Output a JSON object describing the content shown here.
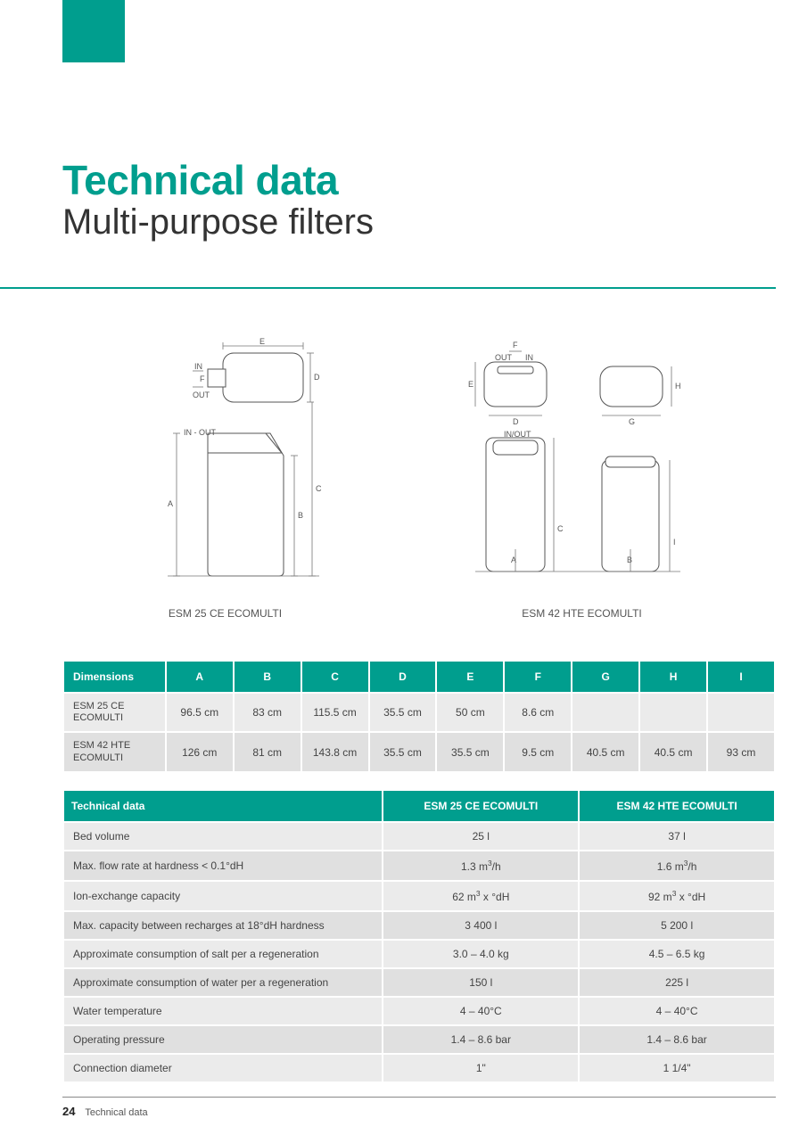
{
  "colors": {
    "teal": "#009e8e",
    "row_a": "#ebebeb",
    "row_b": "#e0e0e0",
    "text": "#333333",
    "muted": "#555555"
  },
  "header": {
    "title": "Technical data",
    "subtitle": "Multi-purpose filters"
  },
  "diagrams": {
    "left_caption": "ESM 25 CE ECOMULTI",
    "right_caption": "ESM 42 HTE ECOMULTI",
    "labels_in_out": {
      "in": "IN",
      "out": "OUT",
      "inout": "IN - OUT"
    },
    "dim_letters": [
      "A",
      "B",
      "C",
      "D",
      "E",
      "F",
      "G",
      "H",
      "I"
    ]
  },
  "dimensions_table": {
    "header": [
      "Dimensions",
      "A",
      "B",
      "C",
      "D",
      "E",
      "F",
      "G",
      "H",
      "I"
    ],
    "rows": [
      {
        "label": "ESM 25 CE\nECOMULTI",
        "cells": [
          "96.5 cm",
          "83 cm",
          "115.5 cm",
          "35.5 cm",
          "50 cm",
          "8.6 cm",
          "",
          "",
          ""
        ]
      },
      {
        "label": "ESM 42 HTE\nECOMULTI",
        "cells": [
          "126 cm",
          "81 cm",
          "143.8 cm",
          "35.5 cm",
          "35.5 cm",
          "9.5 cm",
          "40.5 cm",
          "40.5 cm",
          "93 cm"
        ]
      }
    ],
    "col_widths_pct": [
      14.5,
      9.5,
      9.5,
      9.5,
      9.5,
      9.5,
      9.5,
      9.5,
      9.5,
      9.5
    ]
  },
  "technical_table": {
    "header": [
      "Technical data",
      "ESM 25 CE ECOMULTI",
      "ESM 42 HTE ECOMULTI"
    ],
    "rows": [
      [
        "Bed volume",
        "25 l",
        "37 l"
      ],
      [
        "Max. flow rate at hardness < 0.1°dH",
        "1.3 m³/h",
        "1.6 m³/h"
      ],
      [
        "Ion-exchange capacity",
        "62 m³ x °dH",
        "92 m³ x °dH"
      ],
      [
        "Max. capacity between recharges at 18°dH hardness",
        "3 400 l",
        "5 200 l"
      ],
      [
        "Approximate consumption of salt per a regeneration",
        "3.0 – 4.0 kg",
        "4.5 – 6.5 kg"
      ],
      [
        "Approximate consumption of water per a regeneration",
        "150 l",
        "225 l"
      ],
      [
        "Water temperature",
        "4 – 40°C",
        "4 – 40°C"
      ],
      [
        "Operating pressure",
        "1.4 – 8.6 bar",
        "1.4 – 8.6 bar"
      ],
      [
        "Connection diameter",
        "1\"",
        "1 1/4\""
      ]
    ]
  },
  "footer": {
    "page_number": "24",
    "section": "Technical data"
  }
}
